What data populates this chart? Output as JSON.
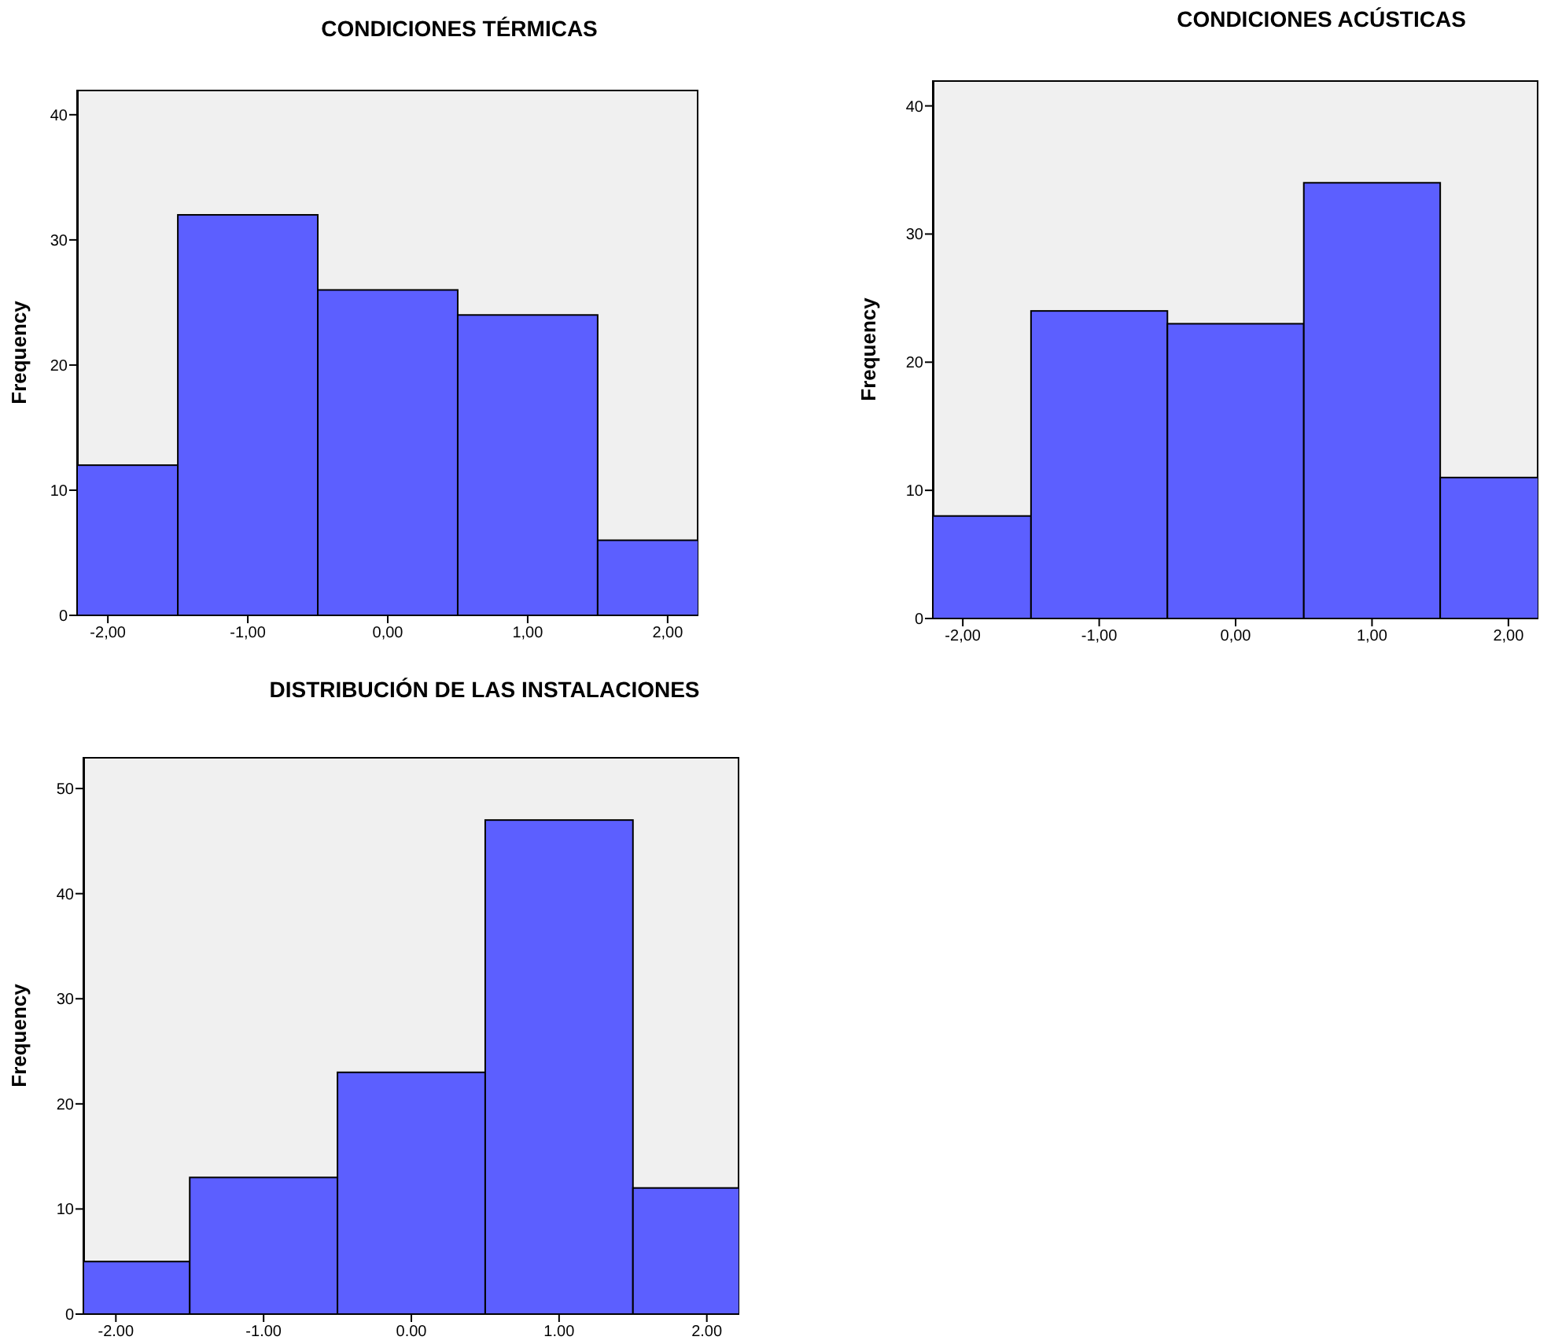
{
  "chart_data": [
    {
      "type": "histogram",
      "title": "CONDICIONES TÉRMICAS",
      "ylabel": "Frequency",
      "bins": [
        -2.22,
        -1.5,
        -0.5,
        0.5,
        1.5,
        2.22
      ],
      "values": [
        12,
        32,
        26,
        24,
        6
      ],
      "color": "#5c5fff",
      "xlim": [
        -2.22,
        2.22
      ],
      "xticks": [
        {
          "value": -2,
          "label": "-2,00"
        },
        {
          "value": -1,
          "label": "-1,00"
        },
        {
          "value": 0,
          "label": "0,00"
        },
        {
          "value": 1,
          "label": "1,00"
        },
        {
          "value": 2,
          "label": "2,00"
        }
      ],
      "ylim": [
        0,
        42
      ],
      "yticks": [
        0,
        10,
        20,
        30,
        40
      ]
    },
    {
      "type": "histogram",
      "title": "CONDICIONES ACÚSTICAS",
      "ylabel": "Frequency",
      "bins": [
        -2.22,
        -1.5,
        -0.5,
        0.5,
        1.5,
        2.22
      ],
      "values": [
        8,
        24,
        23,
        34,
        11
      ],
      "color": "#5c5fff",
      "xlim": [
        -2.22,
        2.22
      ],
      "xticks": [
        {
          "value": -2,
          "label": "-2,00"
        },
        {
          "value": -1,
          "label": "-1,00"
        },
        {
          "value": 0,
          "label": "0,00"
        },
        {
          "value": 1,
          "label": "1,00"
        },
        {
          "value": 2,
          "label": "2,00"
        }
      ],
      "ylim": [
        0,
        42
      ],
      "yticks": [
        0,
        10,
        20,
        30,
        40
      ]
    },
    {
      "type": "histogram",
      "title": "DISTRIBUCIÓN DE LAS INSTALACIONES",
      "ylabel": "Frequency",
      "bins": [
        -2.22,
        -1.5,
        -0.5,
        0.5,
        1.5,
        2.22
      ],
      "values": [
        5,
        13,
        23,
        47,
        12
      ],
      "color": "#5c5fff",
      "xlim": [
        -2.22,
        2.22
      ],
      "xticks": [
        {
          "value": -2,
          "label": "-2.00"
        },
        {
          "value": -1,
          "label": "-1.00"
        },
        {
          "value": 0,
          "label": "0.00"
        },
        {
          "value": 1,
          "label": "1.00"
        },
        {
          "value": 2,
          "label": "2.00"
        }
      ],
      "ylim": [
        0,
        53
      ],
      "yticks": [
        0,
        10,
        20,
        30,
        40,
        50
      ]
    }
  ]
}
